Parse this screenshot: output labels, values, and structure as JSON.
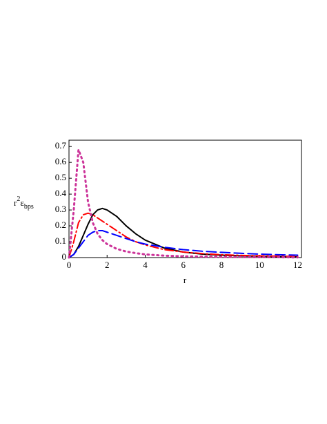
{
  "chart_data": {
    "type": "line",
    "x_label": "r",
    "ylabel_parts": [
      "r",
      "2",
      "ε",
      "bps"
    ],
    "x": [
      0,
      0.25,
      0.5,
      0.75,
      1,
      1.25,
      1.5,
      1.75,
      2,
      2.5,
      3,
      3.5,
      4,
      5,
      6,
      7,
      8,
      9,
      10,
      11,
      12
    ],
    "series": [
      {
        "color": "#000000",
        "dash": "",
        "values": [
          0,
          0.02,
          0.07,
          0.14,
          0.21,
          0.27,
          0.3,
          0.31,
          0.3,
          0.26,
          0.2,
          0.15,
          0.11,
          0.06,
          0.035,
          0.022,
          0.015,
          0.011,
          0.008,
          0.006,
          0.005
        ]
      },
      {
        "color": "#ff0000",
        "dash": "12 4 2 4",
        "values": [
          0,
          0.1,
          0.22,
          0.27,
          0.28,
          0.27,
          0.25,
          0.23,
          0.21,
          0.17,
          0.13,
          0.1,
          0.08,
          0.05,
          0.035,
          0.025,
          0.018,
          0.014,
          0.011,
          0.009,
          0.007
        ]
      },
      {
        "color": "#0000ff",
        "dash": "14 6",
        "values": [
          0,
          0.02,
          0.06,
          0.1,
          0.14,
          0.16,
          0.17,
          0.17,
          0.16,
          0.14,
          0.12,
          0.1,
          0.085,
          0.065,
          0.05,
          0.04,
          0.033,
          0.027,
          0.022,
          0.018,
          0.015
        ]
      },
      {
        "color": "#cc3399",
        "dash": "2 5",
        "values": [
          0,
          0.3,
          0.68,
          0.6,
          0.35,
          0.22,
          0.15,
          0.11,
          0.085,
          0.055,
          0.038,
          0.028,
          0.02,
          0.012,
          0.008,
          0.006,
          0.004,
          0.003,
          0.002,
          0.002,
          0.001
        ]
      }
    ],
    "xlim": [
      0,
      12.2
    ],
    "ylim": [
      0,
      0.74
    ],
    "xticks": [
      0,
      2,
      4,
      6,
      8,
      10,
      12
    ],
    "yticks": [
      0,
      0.1,
      0.2,
      0.3,
      0.4,
      0.5,
      0.6,
      0.7
    ]
  }
}
